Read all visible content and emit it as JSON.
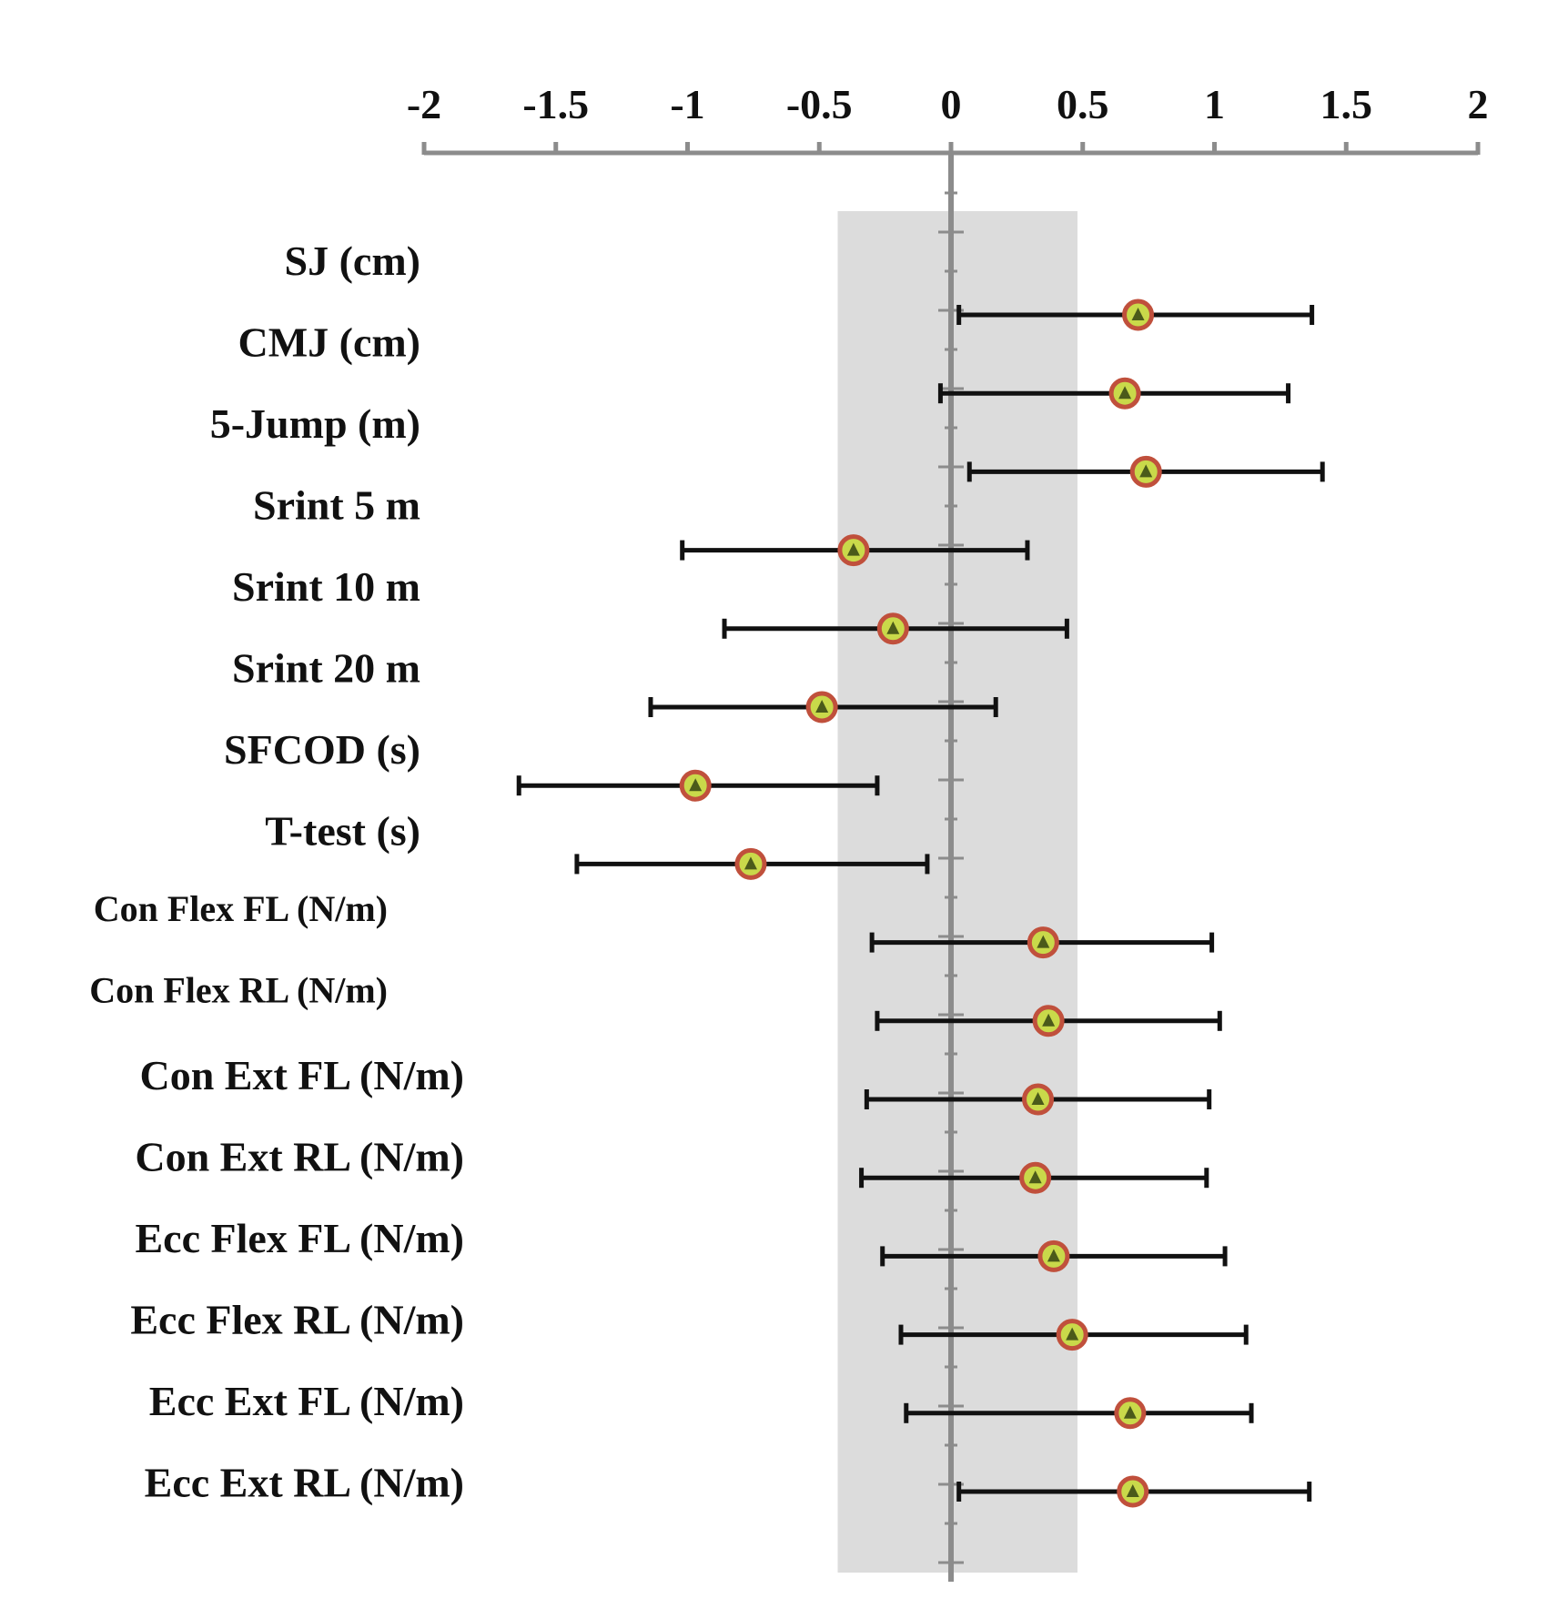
{
  "colors": {
    "band": "#dcdcdc",
    "axis": "#8c8c8c",
    "error_bar": "#111111",
    "marker_fill": "#c9d94a",
    "marker_stroke": "#c0503c",
    "text": "#111111"
  },
  "chart_data": {
    "type": "forest",
    "title": "",
    "xlabel": "",
    "ylabel": "",
    "xlim": [
      -2,
      2
    ],
    "x_ticks": [
      "-2",
      "-1.5",
      "-1",
      "-0.5",
      "0",
      "0.5",
      "1",
      "1.5",
      "2"
    ],
    "x_tick_values": [
      -2,
      -1.5,
      -1,
      -0.5,
      0,
      0.5,
      1,
      1.5,
      2
    ],
    "reference_band": [
      -0.43,
      0.48
    ],
    "reference_line": 0,
    "marker_icon": "triangle-marker-icon",
    "rows": [
      {
        "label": "SJ (cm)",
        "effect": 0.71,
        "lower": 0.03,
        "upper": 1.37
      },
      {
        "label": "CMJ (cm)",
        "effect": 0.66,
        "lower": -0.04,
        "upper": 1.28
      },
      {
        "label": "5-Jump (m)",
        "effect": 0.74,
        "lower": 0.07,
        "upper": 1.41
      },
      {
        "label": "Srint  5 m",
        "effect": -0.37,
        "lower": -1.02,
        "upper": 0.29
      },
      {
        "label": "Srint  10 m",
        "effect": -0.22,
        "lower": -0.86,
        "upper": 0.44
      },
      {
        "label": "Srint  20 m",
        "effect": -0.49,
        "lower": -1.14,
        "upper": 0.17
      },
      {
        "label": "SFCOD (s)",
        "effect": -0.97,
        "lower": -1.64,
        "upper": -0.28
      },
      {
        "label": "T-test (s)",
        "effect": -0.76,
        "lower": -1.42,
        "upper": -0.09
      },
      {
        "label": "Con Flex FL (N/m)",
        "effect": 0.35,
        "lower": -0.3,
        "upper": 0.99
      },
      {
        "label": "Con Flex RL (N/m)",
        "effect": 0.37,
        "lower": -0.28,
        "upper": 1.02
      },
      {
        "label": "Con Ext FL (N/m)",
        "effect": 0.33,
        "lower": -0.32,
        "upper": 0.98
      },
      {
        "label": "Con Ext RL (N/m)",
        "effect": 0.32,
        "lower": -0.34,
        "upper": 0.97
      },
      {
        "label": "Ecc Flex FL (N/m)",
        "effect": 0.39,
        "lower": -0.26,
        "upper": 1.04
      },
      {
        "label": "Ecc Flex RL (N/m)",
        "effect": 0.46,
        "lower": -0.19,
        "upper": 1.12
      },
      {
        "label": "Ecc Ext FL (N/m)",
        "effect": 0.68,
        "lower": -0.17,
        "upper": 1.14
      },
      {
        "label": "Ecc Ext RL (N/m)",
        "effect": 0.69,
        "lower": 0.03,
        "upper": 1.36
      }
    ]
  }
}
